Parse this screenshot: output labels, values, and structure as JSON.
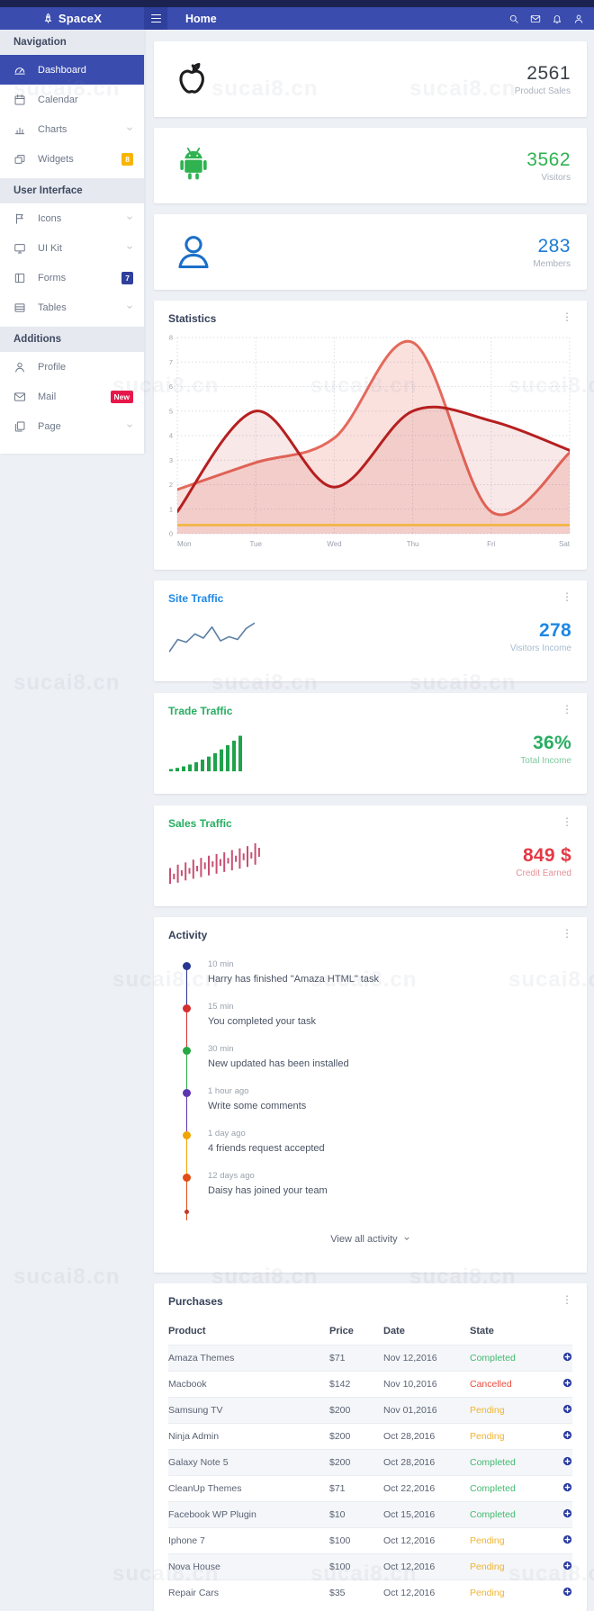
{
  "watermark": {
    "text": "sucai8.cn"
  },
  "header": {
    "brand": "SpaceX",
    "title": "Home",
    "icons": [
      "search",
      "mail",
      "bell",
      "user"
    ]
  },
  "sidebar": {
    "sections": [
      {
        "label": "Navigation",
        "items": [
          {
            "label": "Dashboard",
            "icon": "dashboard",
            "active": true
          },
          {
            "label": "Calendar",
            "icon": "calendar"
          },
          {
            "label": "Charts",
            "icon": "charts",
            "chevron": true
          },
          {
            "label": "Widgets",
            "icon": "widgets",
            "badge": "8",
            "badge_color": "#f7b500"
          }
        ]
      },
      {
        "label": "User Interface",
        "items": [
          {
            "label": "Icons",
            "icon": "flag",
            "chevron": true
          },
          {
            "label": "UI Kit",
            "icon": "monitor",
            "chevron": true
          },
          {
            "label": "Forms",
            "icon": "forms",
            "badge": "7",
            "badge_color": "#2f3f9c"
          },
          {
            "label": "Tables",
            "icon": "tables",
            "chevron": true
          }
        ]
      },
      {
        "label": "Additions",
        "items": [
          {
            "label": "Profile",
            "icon": "person"
          },
          {
            "label": "Mail",
            "icon": "envelope",
            "badge": "New",
            "badge_color": "#e8174a"
          },
          {
            "label": "Page",
            "icon": "page",
            "chevron": true
          }
        ]
      }
    ]
  },
  "stat_cards": [
    {
      "icon": "apple",
      "value": "2561",
      "label": "Product Sales",
      "value_color": "#3a4149",
      "icon_color": "#1d1d1f"
    },
    {
      "icon": "android",
      "value": "3562",
      "label": "Visitors",
      "value_color": "#2eb350",
      "icon_color": "#2eb350"
    },
    {
      "icon": "member",
      "value": "283",
      "label": "Members",
      "value_color": "#1c7cd6",
      "icon_color": "#1c6fc8"
    }
  ],
  "statistics": {
    "title": "Statistics"
  },
  "chart_data": [
    {
      "name": "statistics-chart",
      "type": "area",
      "title": "Statistics",
      "categories": [
        "Mon",
        "Tue",
        "Wed",
        "Thu",
        "Fri",
        "Sat"
      ],
      "ylim": [
        0,
        8
      ],
      "yticks": [
        0,
        1,
        2,
        3,
        4,
        5,
        6,
        7,
        8
      ],
      "grid": true,
      "legend_position": "none",
      "series": [
        {
          "name": "visitors-light-red",
          "type": "area",
          "color": "#e4695c",
          "fill_opacity": 0.2,
          "smooth": true,
          "values": [
            1.8,
            2.9,
            3.9,
            7.8,
            0.9,
            3.3
          ]
        },
        {
          "name": "sales-dark-red",
          "type": "area",
          "color": "#b61f1f",
          "fill_opacity": 0.1,
          "smooth": true,
          "values": [
            0.9,
            5.0,
            1.9,
            5.0,
            4.6,
            3.4
          ]
        },
        {
          "name": "baseline-orange",
          "type": "line",
          "color": "#f2b43c",
          "fill_opacity": 0,
          "smooth": false,
          "values": [
            0.35,
            0.35,
            0.35,
            0.35,
            0.35,
            0.35
          ]
        }
      ]
    },
    {
      "name": "site-traffic-spark",
      "type": "line",
      "color": "#5b7fa6",
      "ylim": [
        0,
        6
      ],
      "values": [
        1.0,
        2.8,
        2.4,
        3.6,
        3.0,
        4.6,
        2.6,
        3.2,
        2.8,
        4.4,
        5.2
      ]
    },
    {
      "name": "trade-traffic-spark",
      "type": "bar",
      "color": "#1fa24a",
      "ylim": [
        0,
        5
      ],
      "values": [
        0.3,
        0.45,
        0.65,
        0.9,
        1.2,
        1.55,
        1.95,
        2.4,
        2.9,
        3.45,
        4.05,
        4.7
      ]
    },
    {
      "name": "sales-traffic-spark",
      "type": "range-bar",
      "color": "#c94f72",
      "ylim": [
        0,
        8
      ],
      "bars": [
        [
          0,
          2.8
        ],
        [
          0.8,
          1.8
        ],
        [
          0.2,
          3.4
        ],
        [
          1.4,
          2.4
        ],
        [
          0.6,
          3.8
        ],
        [
          1.8,
          2.8
        ],
        [
          0.9,
          4.3
        ],
        [
          2.2,
          3.2
        ],
        [
          1.2,
          4.6
        ],
        [
          2.6,
          3.8
        ],
        [
          1.5,
          5.0
        ],
        [
          3.0,
          4.0
        ],
        [
          1.8,
          5.3
        ],
        [
          3.2,
          4.4
        ],
        [
          2.1,
          5.6
        ],
        [
          3.6,
          4.6
        ],
        [
          2.4,
          6.0
        ],
        [
          3.9,
          5.0
        ],
        [
          2.7,
          6.3
        ],
        [
          4.2,
          5.4
        ],
        [
          3.0,
          6.7
        ],
        [
          4.5,
          5.6
        ],
        [
          3.4,
          7.2
        ],
        [
          4.8,
          6.4
        ]
      ]
    }
  ],
  "mini_cards": [
    {
      "title": "Site Traffic",
      "title_color": "#1e88e5",
      "value": "278",
      "label": "Visitors Income",
      "value_color": "#1e88e5",
      "label_color": "#8aa5c2",
      "spark": "site-traffic-spark"
    },
    {
      "title": "Trade Traffic",
      "title_color": "#27ae60",
      "value": "36%",
      "label": "Total Income",
      "value_color": "#27ae60",
      "label_color": "#52b87e",
      "spark": "trade-traffic-spark"
    },
    {
      "title": "Sales Traffic",
      "title_color": "#27ae60",
      "value": "849 $",
      "label": "Credit Earned",
      "value_color": "#e53945",
      "label_color": "#e06a72",
      "spark": "sales-traffic-spark"
    }
  ],
  "activity": {
    "title": "Activity",
    "footer": "View all activity",
    "items": [
      {
        "time": "10 min",
        "text": "Harry has finished \"Amaza HTML\" task",
        "color": "#283593"
      },
      {
        "time": "15 min",
        "text": "You completed your task",
        "color": "#d32f2f"
      },
      {
        "time": "30 min",
        "text": "New updated has been installed",
        "color": "#27a844"
      },
      {
        "time": "1 hour ago",
        "text": "Write some comments",
        "color": "#5e35b1"
      },
      {
        "time": "1 day ago",
        "text": "4 friends request accepted",
        "color": "#f0a500"
      },
      {
        "time": "12 days ago",
        "text": "Daisy has joined your team",
        "color": "#e04e16"
      }
    ]
  },
  "purchases": {
    "title": "Purchases",
    "columns": [
      "Product",
      "Price",
      "Date",
      "State"
    ],
    "state_colors": {
      "Completed": "#43b96f",
      "Cancelled": "#e74c3c",
      "Pending": "#f0b42e"
    },
    "rows": [
      [
        "Amaza Themes",
        "$71",
        "Nov 12,2016",
        "Completed"
      ],
      [
        "Macbook",
        "$142",
        "Nov 10,2016",
        "Cancelled"
      ],
      [
        "Samsung TV",
        "$200",
        "Nov 01,2016",
        "Pending"
      ],
      [
        "Ninja Admin",
        "$200",
        "Oct 28,2016",
        "Pending"
      ],
      [
        "Galaxy Note 5",
        "$200",
        "Oct 28,2016",
        "Completed"
      ],
      [
        "CleanUp Themes",
        "$71",
        "Oct 22,2016",
        "Completed"
      ],
      [
        "Facebook WP Plugin",
        "$10",
        "Oct 15,2016",
        "Completed"
      ],
      [
        "Iphone 7",
        "$100",
        "Oct 12,2016",
        "Pending"
      ],
      [
        "Nova House",
        "$100",
        "Oct 12,2016",
        "Pending"
      ],
      [
        "Repair Cars",
        "$35",
        "Oct 12,2016",
        "Pending"
      ]
    ]
  }
}
